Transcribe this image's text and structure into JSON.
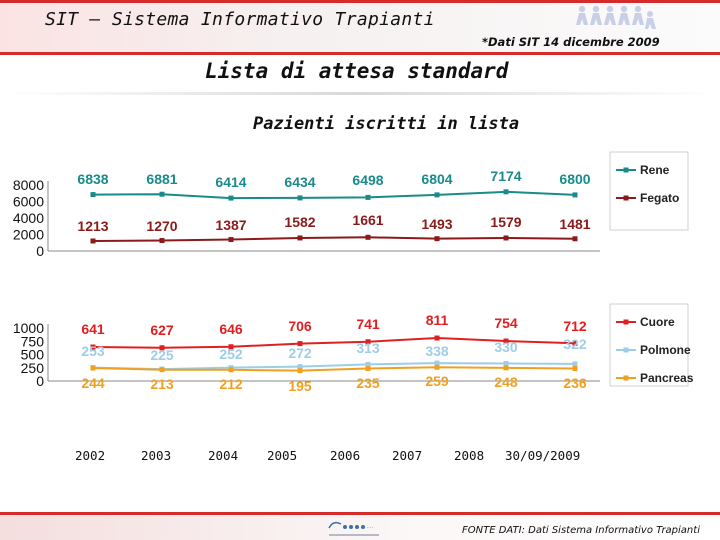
{
  "header": {
    "title": "SIT – Sistema Informativo Trapianti",
    "note": "*Dati SIT 14 dicembre 2009"
  },
  "page": {
    "title": "Lista di attesa standard",
    "subtitle": "Pazienti iscritti in lista"
  },
  "footer": {
    "source": "FONTE DATI: Dati Sistema Informativo Trapianti"
  },
  "chart_data": [
    {
      "type": "line",
      "categories": [
        "2002",
        "2003",
        "2004",
        "2005",
        "2006",
        "2007",
        "2008",
        "30/09/2009"
      ],
      "yticks": [
        "8000",
        "6000",
        "4000",
        "2000",
        "0"
      ],
      "ylim": [
        0,
        8000
      ],
      "legend_position": "right",
      "series": [
        {
          "name": "Rene",
          "color": "#1a8a8a",
          "values": [
            6838,
            6881,
            6414,
            6434,
            6498,
            6804,
            7174,
            6800
          ]
        },
        {
          "name": "Fegato",
          "color": "#8b1a1a",
          "values": [
            1213,
            1270,
            1387,
            1582,
            1661,
            1493,
            1579,
            1481
          ]
        }
      ]
    },
    {
      "type": "line",
      "categories": [
        "2002",
        "2003",
        "2004",
        "2005",
        "2006",
        "2007",
        "2008",
        "30/09/2009"
      ],
      "yticks": [
        "1000",
        "750",
        "500",
        "250",
        "0"
      ],
      "ylim": [
        0,
        1000
      ],
      "legend_position": "right",
      "series": [
        {
          "name": "Cuore",
          "color": "#e02020",
          "values": [
            641,
            627,
            646,
            706,
            741,
            811,
            754,
            712
          ]
        },
        {
          "name": "Polmone",
          "color": "#9ecde8",
          "values": [
            253,
            225,
            252,
            272,
            313,
            338,
            330,
            322
          ]
        },
        {
          "name": "Pancreas",
          "color": "#f0a020",
          "values": [
            244,
            213,
            212,
            195,
            235,
            259,
            248,
            236
          ]
        }
      ]
    }
  ]
}
